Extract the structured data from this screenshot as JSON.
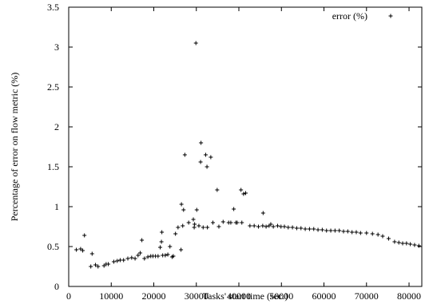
{
  "chart_data": {
    "type": "scatter",
    "title": "",
    "xlabel": "Tasks' start time (sec.)",
    "ylabel": "Percentage of error on flow metric (%)",
    "xlim": [
      0,
      83000
    ],
    "ylim": [
      0,
      3.5
    ],
    "grid": false,
    "legend_position": "top-right",
    "x_ticks": [
      0,
      10000,
      20000,
      30000,
      40000,
      50000,
      60000,
      70000,
      80000
    ],
    "x_tick_labels": [
      "0",
      "10000",
      "20000",
      "30000",
      "40000",
      "50000",
      "60000",
      "70000",
      "80000"
    ],
    "y_ticks": [
      0,
      0.5,
      1,
      1.5,
      2,
      2.5,
      3,
      3.5
    ],
    "y_tick_labels": [
      "0",
      "0.5",
      "1",
      "1.5",
      "2",
      "2.5",
      "3",
      "3.5"
    ],
    "marker": "+",
    "series": [
      {
        "name": "error (%)",
        "x": [
          1800,
          2800,
          3300,
          3700,
          5200,
          5500,
          6300,
          6900,
          8300,
          8800,
          9300,
          10600,
          11400,
          12100,
          12900,
          13900,
          14800,
          15600,
          16300,
          16800,
          17200,
          17800,
          18600,
          19300,
          19800,
          20400,
          21000,
          21500,
          21800,
          21900,
          22100,
          22700,
          23300,
          23800,
          24300,
          24600,
          25100,
          25700,
          26400,
          26500,
          26800,
          27000,
          27300,
          28200,
          29300,
          29500,
          29600,
          29900,
          30100,
          30600,
          31000,
          31100,
          31600,
          32200,
          32500,
          32600,
          33400,
          33900,
          34900,
          35300,
          36300,
          37600,
          38100,
          38800,
          39300,
          39600,
          40500,
          40700,
          41100,
          41600,
          42600,
          43600,
          44600,
          45600,
          45700,
          46400,
          47100,
          47500,
          48100,
          49100,
          49900,
          50700,
          51600,
          52600,
          53600,
          54600,
          55600,
          56600,
          57600,
          58600,
          59600,
          60600,
          61600,
          62600,
          63600,
          64600,
          65600,
          66600,
          67600,
          68600,
          70000,
          71400,
          72700,
          73800,
          75200,
          76600,
          77600,
          78500,
          79400,
          80300,
          81300,
          82300
        ],
        "y": [
          0.46,
          0.47,
          0.45,
          0.64,
          0.25,
          0.41,
          0.27,
          0.25,
          0.26,
          0.28,
          0.28,
          0.31,
          0.32,
          0.33,
          0.33,
          0.35,
          0.36,
          0.35,
          0.39,
          0.42,
          0.58,
          0.35,
          0.37,
          0.38,
          0.38,
          0.38,
          0.38,
          0.49,
          0.56,
          0.68,
          0.39,
          0.39,
          0.4,
          0.5,
          0.37,
          0.38,
          0.66,
          0.74,
          0.46,
          1.03,
          0.76,
          0.96,
          1.65,
          0.8,
          0.84,
          0.74,
          0.78,
          3.05,
          0.96,
          0.76,
          1.56,
          1.8,
          0.74,
          1.65,
          1.5,
          0.74,
          1.62,
          0.8,
          1.21,
          0.75,
          0.81,
          0.8,
          0.8,
          0.97,
          0.8,
          0.8,
          1.21,
          0.8,
          1.16,
          1.17,
          0.76,
          0.76,
          0.75,
          0.76,
          0.92,
          0.75,
          0.76,
          0.78,
          0.75,
          0.76,
          0.75,
          0.75,
          0.74,
          0.74,
          0.73,
          0.73,
          0.72,
          0.72,
          0.72,
          0.71,
          0.71,
          0.7,
          0.7,
          0.7,
          0.7,
          0.69,
          0.69,
          0.68,
          0.68,
          0.67,
          0.67,
          0.66,
          0.65,
          0.63,
          0.6,
          0.56,
          0.55,
          0.54,
          0.54,
          0.53,
          0.52,
          0.51
        ]
      }
    ]
  }
}
